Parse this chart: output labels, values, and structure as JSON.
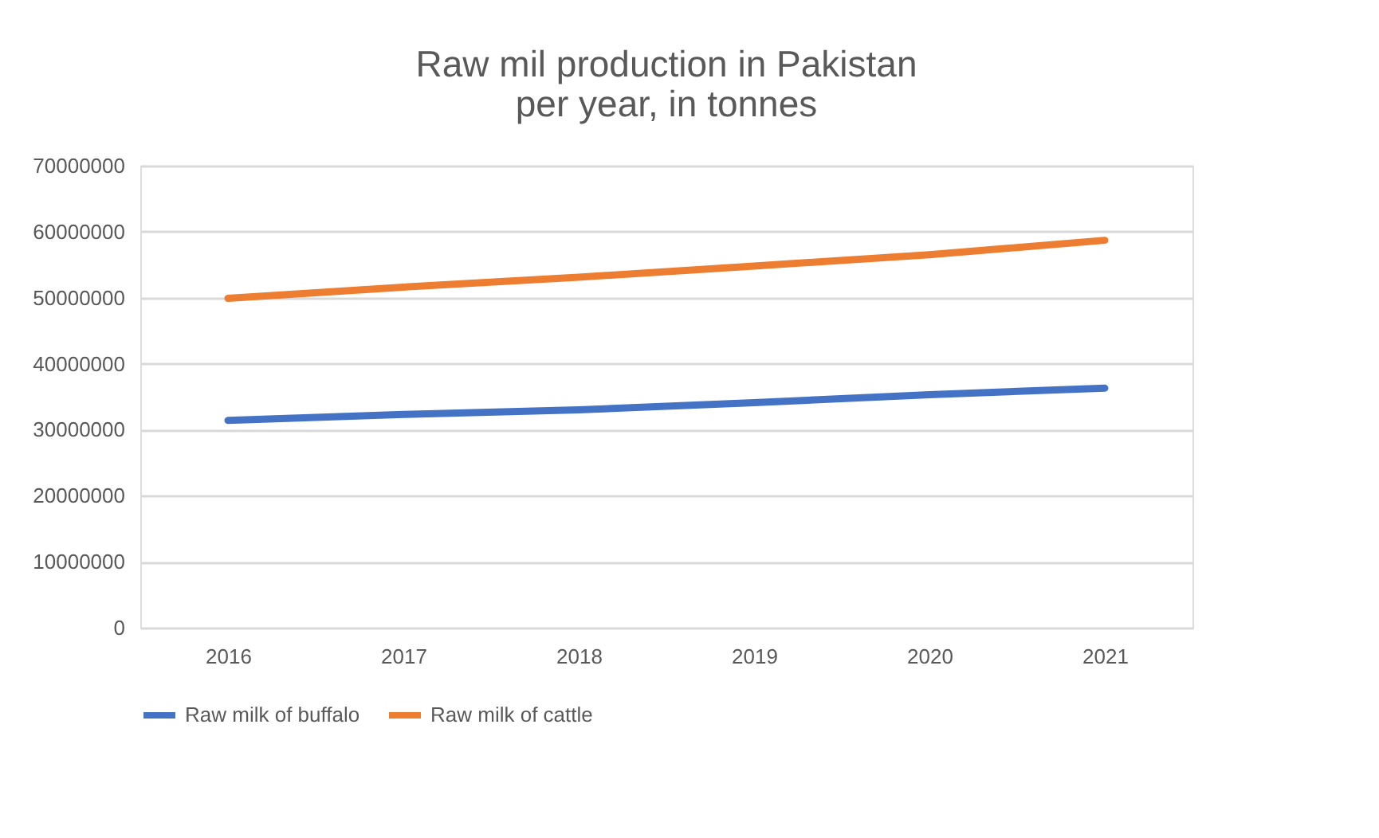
{
  "chart_data": {
    "type": "line",
    "title": [
      "Raw mil production in Pakistan",
      "per year, in tonnes"
    ],
    "categories": [
      "2016",
      "2017",
      "2018",
      "2019",
      "2020",
      "2021"
    ],
    "series": [
      {
        "name": "Raw milk of buffalo",
        "color": "#4472c4",
        "values": [
          31400000,
          32300000,
          33000000,
          34100000,
          35300000,
          36300000
        ]
      },
      {
        "name": "Raw milk of cattle",
        "color": "#ed7d31",
        "values": [
          49900000,
          51600000,
          53100000,
          54800000,
          56500000,
          58700000
        ]
      }
    ],
    "ylim": [
      0,
      70000000
    ],
    "yticks": [
      0,
      10000000,
      20000000,
      30000000,
      40000000,
      50000000,
      60000000,
      70000000
    ],
    "grid": "y",
    "legend": "bottom",
    "marker": "none",
    "line_style": "solid"
  }
}
